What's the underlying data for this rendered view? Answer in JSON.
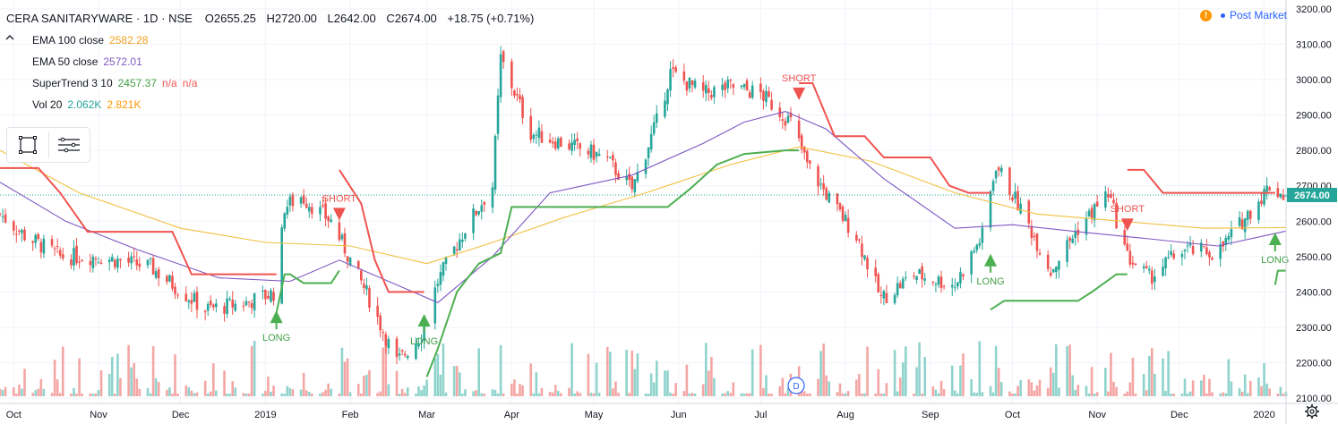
{
  "header": {
    "symbol": "CERA SANITARYWARE · 1D · NSE",
    "open": "O2655.25",
    "high": "H2720.00",
    "low": "L2642.00",
    "close": "C2674.00",
    "change": "+18.75 (+0.71%)"
  },
  "indicators": [
    {
      "name": "EMA 100 close",
      "values": [
        "2582.28"
      ],
      "colors": [
        "#f0c040"
      ]
    },
    {
      "name": "EMA 50 close",
      "values": [
        "2572.01"
      ],
      "colors": [
        "#7e57c2"
      ]
    },
    {
      "name": "SuperTrend 3 10",
      "values": [
        "2457.37",
        "n/a",
        "n/a"
      ],
      "colors": [
        "#4caf50",
        "#ef5350",
        "#ef5350"
      ]
    },
    {
      "name": "Vol 20",
      "values": [
        "2.062K",
        "2.821K"
      ],
      "colors": [
        "#26a69a",
        "#ff9800"
      ]
    }
  ],
  "status": {
    "post_market": "Post Market",
    "alert_icon": "!"
  },
  "price_tag": "2674.00",
  "event_badge": "D",
  "colors": {
    "up": "#26a69a",
    "down": "#ef5350",
    "ema100": "#f0c040",
    "ema50": "#7e57c2",
    "st_up": "#4caf50",
    "st_down": "#ef5350",
    "vol_up": "#8fd3cc",
    "vol_down": "#f4a6a4",
    "grid": "#f0f3fa"
  },
  "icons": [
    "chevron-up-icon",
    "rectangle-tool-icon",
    "menu-lines-icon",
    "settings-gear-icon",
    "alert-icon"
  ],
  "chart_data": {
    "type": "candlestick",
    "title": "CERA SANITARYWARE · 1D · NSE",
    "x_range": [
      "2018-09-26",
      "2020-01-09"
    ],
    "ylim": [
      2085,
      3225
    ],
    "y_ticks": [
      2100,
      2200,
      2300,
      2400,
      2500,
      2600,
      2700,
      2800,
      2900,
      3000,
      3100,
      3200
    ],
    "y_tick_labels": [
      "2100.00",
      "2200.00",
      "2300.00",
      "2400.00",
      "2500.00",
      "2600.00",
      "2700.00",
      "2800.00",
      "2900.00",
      "3000.00",
      "3100.00",
      "3200.00"
    ],
    "x_ticks": [
      {
        "label": "Oct",
        "date": "2018-10-01"
      },
      {
        "label": "Nov",
        "date": "2018-11-01"
      },
      {
        "label": "Dec",
        "date": "2018-12-01"
      },
      {
        "label": "2019",
        "date": "2019-01-01"
      },
      {
        "label": "Feb",
        "date": "2019-02-01"
      },
      {
        "label": "Mar",
        "date": "2019-03-01"
      },
      {
        "label": "Apr",
        "date": "2019-04-01"
      },
      {
        "label": "May",
        "date": "2019-05-01"
      },
      {
        "label": "Jun",
        "date": "2019-06-01"
      },
      {
        "label": "Jul",
        "date": "2019-07-01"
      },
      {
        "label": "Aug",
        "date": "2019-08-01"
      },
      {
        "label": "Sep",
        "date": "2019-09-01"
      },
      {
        "label": "Oct",
        "date": "2019-10-01"
      },
      {
        "label": "Nov",
        "date": "2019-11-01"
      },
      {
        "label": "Dec",
        "date": "2019-12-01"
      },
      {
        "label": "2020",
        "date": "2020-01-01"
      }
    ],
    "close_path": [
      [
        "2018-09-26",
        2620
      ],
      [
        "2018-10-05",
        2560
      ],
      [
        "2018-10-18",
        2500
      ],
      [
        "2018-11-01",
        2500
      ],
      [
        "2018-11-20",
        2470
      ],
      [
        "2018-12-10",
        2350
      ],
      [
        "2018-12-25",
        2370
      ],
      [
        "2019-01-05",
        2400
      ],
      [
        "2019-01-08",
        2640
      ],
      [
        "2019-01-14",
        2670
      ],
      [
        "2019-01-25",
        2600
      ],
      [
        "2019-02-08",
        2380
      ],
      [
        "2019-02-18",
        2200
      ],
      [
        "2019-02-27",
        2280
      ],
      [
        "2019-03-05",
        2430
      ],
      [
        "2019-03-15",
        2580
      ],
      [
        "2019-03-25",
        2700
      ],
      [
        "2019-03-28",
        3060
      ],
      [
        "2019-04-08",
        2850
      ],
      [
        "2019-04-20",
        2820
      ],
      [
        "2019-05-05",
        2780
      ],
      [
        "2019-05-15",
        2690
      ],
      [
        "2019-05-24",
        2880
      ],
      [
        "2019-05-29",
        3020
      ],
      [
        "2019-06-10",
        2960
      ],
      [
        "2019-06-20",
        2980
      ],
      [
        "2019-07-01",
        2960
      ],
      [
        "2019-07-12",
        2880
      ],
      [
        "2019-07-18",
        2760
      ],
      [
        "2019-07-28",
        2640
      ],
      [
        "2019-08-05",
        2560
      ],
      [
        "2019-08-14",
        2380
      ],
      [
        "2019-08-26",
        2450
      ],
      [
        "2019-09-10",
        2420
      ],
      [
        "2019-09-20",
        2560
      ],
      [
        "2019-09-25",
        2760
      ],
      [
        "2019-10-05",
        2620
      ],
      [
        "2019-10-15",
        2460
      ],
      [
        "2019-10-25",
        2580
      ],
      [
        "2019-11-05",
        2680
      ],
      [
        "2019-11-12",
        2500
      ],
      [
        "2019-11-20",
        2440
      ],
      [
        "2019-12-02",
        2520
      ],
      [
        "2019-12-15",
        2510
      ],
      [
        "2019-12-24",
        2600
      ],
      [
        "2020-01-03",
        2700
      ],
      [
        "2020-01-08",
        2674
      ]
    ],
    "ema50_path": [
      [
        "2018-09-26",
        2710
      ],
      [
        "2018-10-20",
        2600
      ],
      [
        "2018-11-15",
        2520
      ],
      [
        "2018-12-15",
        2440
      ],
      [
        "2019-01-10",
        2430
      ],
      [
        "2019-01-28",
        2490
      ],
      [
        "2019-02-18",
        2420
      ],
      [
        "2019-03-05",
        2370
      ],
      [
        "2019-03-25",
        2500
      ],
      [
        "2019-04-15",
        2680
      ],
      [
        "2019-05-15",
        2730
      ],
      [
        "2019-06-10",
        2820
      ],
      [
        "2019-06-25",
        2880
      ],
      [
        "2019-07-10",
        2910
      ],
      [
        "2019-07-25",
        2860
      ],
      [
        "2019-08-15",
        2720
      ],
      [
        "2019-09-10",
        2580
      ],
      [
        "2019-10-01",
        2590
      ],
      [
        "2019-10-25",
        2570
      ],
      [
        "2019-11-20",
        2550
      ],
      [
        "2019-12-15",
        2530
      ],
      [
        "2020-01-09",
        2572
      ]
    ],
    "ema100_path": [
      [
        "2018-09-26",
        2800
      ],
      [
        "2018-10-25",
        2680
      ],
      [
        "2018-12-01",
        2580
      ],
      [
        "2019-01-01",
        2540
      ],
      [
        "2019-02-01",
        2530
      ],
      [
        "2019-03-01",
        2480
      ],
      [
        "2019-03-25",
        2540
      ],
      [
        "2019-04-20",
        2610
      ],
      [
        "2019-05-20",
        2680
      ],
      [
        "2019-06-20",
        2760
      ],
      [
        "2019-07-15",
        2810
      ],
      [
        "2019-08-10",
        2770
      ],
      [
        "2019-09-10",
        2680
      ],
      [
        "2019-10-10",
        2620
      ],
      [
        "2019-11-10",
        2600
      ],
      [
        "2019-12-10",
        2580
      ],
      [
        "2020-01-09",
        2582
      ]
    ],
    "supertrend_down": [
      [
        [
          "2018-09-26",
          2750
        ],
        [
          "2018-10-10",
          2750
        ],
        [
          "2018-10-18",
          2680
        ],
        [
          "2018-10-28",
          2570
        ],
        [
          "2018-11-28",
          2570
        ],
        [
          "2018-12-05",
          2450
        ],
        [
          "2018-12-31",
          2450
        ],
        [
          "2019-01-05",
          2450
        ]
      ],
      [
        [
          "2019-01-28",
          2745
        ],
        [
          "2019-02-05",
          2650
        ],
        [
          "2019-02-10",
          2490
        ],
        [
          "2019-02-15",
          2400
        ],
        [
          "2019-02-28",
          2400
        ]
      ],
      [
        [
          "2019-07-15",
          2990
        ],
        [
          "2019-07-20",
          2990
        ],
        [
          "2019-07-28",
          2840
        ],
        [
          "2019-08-08",
          2840
        ],
        [
          "2019-08-15",
          2780
        ],
        [
          "2019-09-01",
          2780
        ],
        [
          "2019-09-08",
          2700
        ],
        [
          "2019-09-15",
          2680
        ],
        [
          "2019-09-23",
          2680
        ]
      ],
      [
        [
          "2019-11-12",
          2745
        ],
        [
          "2019-11-18",
          2745
        ],
        [
          "2019-11-25",
          2680
        ],
        [
          "2020-01-05",
          2680
        ]
      ]
    ],
    "supertrend_up": [
      [
        [
          "2019-01-05",
          2340
        ],
        [
          "2019-01-08",
          2450
        ],
        [
          "2019-01-10",
          2450
        ],
        [
          "2019-01-15",
          2425
        ],
        [
          "2019-01-25",
          2425
        ],
        [
          "2019-01-28",
          2460
        ]
      ],
      [
        [
          "2019-03-01",
          2160
        ],
        [
          "2019-03-05",
          2240
        ],
        [
          "2019-03-12",
          2400
        ],
        [
          "2019-03-20",
          2480
        ],
        [
          "2019-03-28",
          2510
        ],
        [
          "2019-04-01",
          2640
        ],
        [
          "2019-05-28",
          2640
        ],
        [
          "2019-06-05",
          2690
        ],
        [
          "2019-06-15",
          2760
        ],
        [
          "2019-06-25",
          2790
        ],
        [
          "2019-07-10",
          2800
        ],
        [
          "2019-07-15",
          2800
        ]
      ],
      [
        [
          "2019-09-23",
          2350
        ],
        [
          "2019-09-28",
          2375
        ],
        [
          "2019-10-25",
          2375
        ],
        [
          "2019-10-30",
          2400
        ],
        [
          "2019-11-08",
          2450
        ],
        [
          "2019-11-12",
          2450
        ]
      ],
      [
        [
          "2020-01-05",
          2420
        ],
        [
          "2020-01-06",
          2460
        ],
        [
          "2020-01-09",
          2460
        ]
      ]
    ],
    "signals": [
      {
        "type": "LONG",
        "date": "2019-01-05",
        "price": 2330
      },
      {
        "type": "SHORT",
        "date": "2019-01-28",
        "price": 2620
      },
      {
        "type": "LONG",
        "date": "2019-02-28",
        "price": 2320
      },
      {
        "type": "LONG",
        "date": "2019-09-23",
        "price": 2490
      },
      {
        "type": "SHORT",
        "date": "2019-07-15",
        "price": 2960
      },
      {
        "type": "SHORT",
        "date": "2019-11-12",
        "price": 2590
      },
      {
        "type": "LONG",
        "date": "2020-01-05",
        "price": 2550
      }
    ],
    "last_price": 2674.0
  }
}
